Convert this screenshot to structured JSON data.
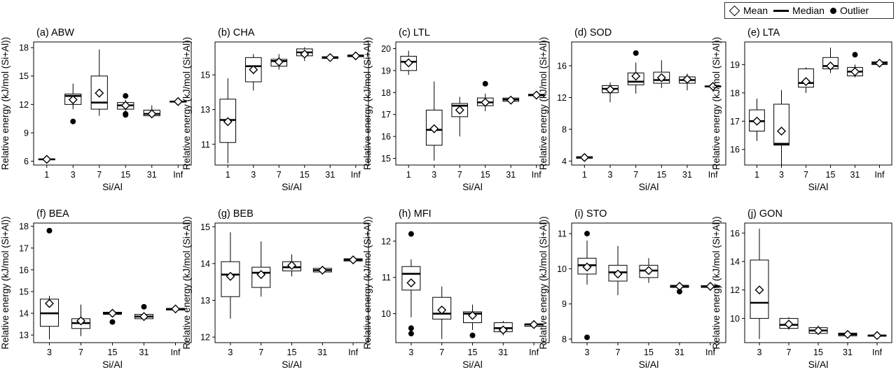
{
  "legend": {
    "mean": "Mean",
    "median": "Median",
    "outlier": "Outlier"
  },
  "chart_data": [
    {
      "type": "box",
      "title": "(a) ABW",
      "xlabel": "Si/Al",
      "ylabel": "Relative energy (kJ/mol (Si+Al))",
      "categories": [
        "1",
        "3",
        "7",
        "15",
        "31",
        "Inf"
      ],
      "yticks": [
        6,
        9,
        12,
        15,
        18
      ],
      "ylim": [
        5.6,
        18.6
      ],
      "boxes": [
        {
          "q1": 6.15,
          "median": 6.2,
          "q3": 6.25,
          "whislo": 6.1,
          "whishi": 6.3,
          "mean": 6.2,
          "outliers": []
        },
        {
          "q1": 12.0,
          "median": 12.9,
          "q3": 13.1,
          "whislo": 11.5,
          "whishi": 14.2,
          "mean": 12.5,
          "outliers": [
            10.2
          ]
        },
        {
          "q1": 11.5,
          "median": 12.2,
          "q3": 15.0,
          "whislo": 10.8,
          "whishi": 17.8,
          "mean": 13.2,
          "outliers": []
        },
        {
          "q1": 11.5,
          "median": 11.9,
          "q3": 12.2,
          "whislo": 11.3,
          "whishi": 12.5,
          "mean": 11.9,
          "outliers": [
            12.9,
            11.0,
            10.9
          ]
        },
        {
          "q1": 10.8,
          "median": 11.0,
          "q3": 11.4,
          "whislo": 10.6,
          "whishi": 11.9,
          "mean": 11.0,
          "outliers": []
        },
        {
          "q1": 12.25,
          "median": 12.3,
          "q3": 12.35,
          "whislo": 12.2,
          "whishi": 12.4,
          "mean": 12.3,
          "outliers": []
        }
      ]
    },
    {
      "type": "box",
      "title": "(b) CHA",
      "xlabel": "Si/Al",
      "ylabel": "Relative energy (kJ/mol (Si+Al))",
      "categories": [
        "1",
        "3",
        "7",
        "15",
        "31",
        "Inf"
      ],
      "yticks": [
        11,
        13,
        15
      ],
      "ylim": [
        9.8,
        16.9
      ],
      "boxes": [
        {
          "q1": 11.1,
          "median": 12.4,
          "q3": 13.6,
          "whislo": 9.9,
          "whishi": 14.8,
          "mean": 12.3,
          "outliers": []
        },
        {
          "q1": 14.6,
          "median": 15.5,
          "q3": 16.0,
          "whislo": 14.1,
          "whishi": 16.2,
          "mean": 15.3,
          "outliers": []
        },
        {
          "q1": 15.5,
          "median": 15.8,
          "q3": 15.9,
          "whislo": 15.3,
          "whishi": 16.2,
          "mean": 15.75,
          "outliers": []
        },
        {
          "q1": 16.1,
          "median": 16.3,
          "q3": 16.5,
          "whislo": 15.8,
          "whishi": 16.6,
          "mean": 16.2,
          "outliers": []
        },
        {
          "q1": 15.95,
          "median": 16.0,
          "q3": 16.05,
          "whislo": 15.85,
          "whishi": 16.1,
          "mean": 16.0,
          "outliers": []
        },
        {
          "q1": 16.05,
          "median": 16.1,
          "q3": 16.15,
          "whislo": 16.0,
          "whishi": 16.2,
          "mean": 16.1,
          "outliers": []
        }
      ]
    },
    {
      "type": "box",
      "title": "(c) LTL",
      "xlabel": "Si/Al",
      "ylabel": "Relative energy (kJ/mol (Si+Al))",
      "categories": [
        "1",
        "3",
        "7",
        "15",
        "31",
        "Inf"
      ],
      "yticks": [
        15,
        16,
        17,
        18,
        19,
        20
      ],
      "ylim": [
        14.7,
        20.3
      ],
      "boxes": [
        {
          "q1": 19.0,
          "median": 19.4,
          "q3": 19.65,
          "whislo": 18.8,
          "whishi": 19.9,
          "mean": 19.35,
          "outliers": []
        },
        {
          "q1": 15.6,
          "median": 16.3,
          "q3": 17.2,
          "whislo": 14.9,
          "whishi": 18.5,
          "mean": 16.35,
          "outliers": []
        },
        {
          "q1": 16.9,
          "median": 17.4,
          "q3": 17.5,
          "whislo": 16.0,
          "whishi": 17.8,
          "mean": 17.2,
          "outliers": []
        },
        {
          "q1": 17.4,
          "median": 17.55,
          "q3": 17.75,
          "whislo": 17.15,
          "whishi": 17.95,
          "mean": 17.55,
          "outliers": [
            18.4
          ]
        },
        {
          "q1": 17.6,
          "median": 17.68,
          "q3": 17.75,
          "whislo": 17.55,
          "whishi": 17.8,
          "mean": 17.65,
          "outliers": []
        },
        {
          "q1": 17.85,
          "median": 17.88,
          "q3": 17.92,
          "whislo": 17.8,
          "whishi": 17.95,
          "mean": 17.88,
          "outliers": []
        }
      ]
    },
    {
      "type": "box",
      "title": "(d) SOD",
      "xlabel": "Si/Al",
      "ylabel": "Relative energy (kJ/mol (Si+Al))",
      "categories": [
        "1",
        "3",
        "7",
        "15",
        "31",
        "Inf"
      ],
      "yticks": [
        4,
        8,
        12,
        16
      ],
      "ylim": [
        3.5,
        19.0
      ],
      "boxes": [
        {
          "q1": 4.35,
          "median": 4.45,
          "q3": 4.55,
          "whislo": 4.25,
          "whishi": 4.65,
          "mean": 4.45,
          "outliers": []
        },
        {
          "q1": 12.6,
          "median": 13.1,
          "q3": 13.5,
          "whislo": 11.4,
          "whishi": 13.9,
          "mean": 13.0,
          "outliers": []
        },
        {
          "q1": 13.6,
          "median": 14.0,
          "q3": 15.1,
          "whislo": 12.5,
          "whishi": 16.4,
          "mean": 14.7,
          "outliers": [
            17.6
          ]
        },
        {
          "q1": 13.8,
          "median": 14.2,
          "q3": 15.2,
          "whislo": 13.2,
          "whishi": 16.7,
          "mean": 14.5,
          "outliers": []
        },
        {
          "q1": 13.8,
          "median": 14.2,
          "q3": 14.6,
          "whislo": 12.9,
          "whishi": 15.0,
          "mean": 14.3,
          "outliers": []
        },
        {
          "q1": 13.35,
          "median": 13.4,
          "q3": 13.45,
          "whislo": 13.3,
          "whishi": 13.5,
          "mean": 13.4,
          "outliers": []
        }
      ]
    },
    {
      "type": "box",
      "title": "(e) LTA",
      "xlabel": "Si/Al",
      "ylabel": "Relative energy (kJ/mol (Si+Al))",
      "categories": [
        "1",
        "3",
        "7",
        "15",
        "31",
        "Inf"
      ],
      "yticks": [
        16,
        17,
        18,
        19
      ],
      "ylim": [
        15.45,
        19.8
      ],
      "boxes": [
        {
          "q1": 16.65,
          "median": 17.0,
          "q3": 17.4,
          "whislo": 16.3,
          "whishi": 17.8,
          "mean": 17.0,
          "outliers": []
        },
        {
          "q1": 16.15,
          "median": 16.2,
          "q3": 17.6,
          "whislo": 15.45,
          "whishi": 18.1,
          "mean": 16.65,
          "outliers": []
        },
        {
          "q1": 18.2,
          "median": 18.35,
          "q3": 18.85,
          "whislo": 18.0,
          "whishi": 18.9,
          "mean": 18.4,
          "outliers": []
        },
        {
          "q1": 18.85,
          "median": 18.95,
          "q3": 19.25,
          "whislo": 18.7,
          "whishi": 19.6,
          "mean": 18.95,
          "outliers": []
        },
        {
          "q1": 18.6,
          "median": 18.75,
          "q3": 18.9,
          "whislo": 18.55,
          "whishi": 19.0,
          "mean": 18.75,
          "outliers": [
            19.35
          ]
        },
        {
          "q1": 19.0,
          "median": 19.05,
          "q3": 19.1,
          "whislo": 18.95,
          "whishi": 19.1,
          "mean": 19.05,
          "outliers": []
        }
      ]
    },
    {
      "type": "box",
      "title": "(f) BEA",
      "xlabel": "Si/Al",
      "ylabel": "Relative energy (kJ/mol (Si+Al))",
      "categories": [
        "3",
        "7",
        "15",
        "31",
        "Inf"
      ],
      "yticks": [
        13,
        14,
        15,
        16,
        17,
        18
      ],
      "ylim": [
        12.65,
        18.15
      ],
      "boxes": [
        {
          "q1": 13.4,
          "median": 14.0,
          "q3": 14.65,
          "whislo": 12.8,
          "whishi": 14.8,
          "mean": 14.45,
          "outliers": [
            17.8
          ]
        },
        {
          "q1": 13.3,
          "median": 13.55,
          "q3": 13.75,
          "whislo": 12.95,
          "whishi": 14.4,
          "mean": 13.65,
          "outliers": []
        },
        {
          "q1": 13.95,
          "median": 14.0,
          "q3": 14.05,
          "whislo": 13.85,
          "whishi": 14.1,
          "mean": 14.0,
          "outliers": [
            13.6
          ]
        },
        {
          "q1": 13.75,
          "median": 13.85,
          "q3": 13.95,
          "whislo": 13.7,
          "whishi": 14.05,
          "mean": 13.85,
          "outliers": [
            14.3
          ]
        },
        {
          "q1": 14.15,
          "median": 14.2,
          "q3": 14.22,
          "whislo": 14.1,
          "whishi": 14.25,
          "mean": 14.2,
          "outliers": []
        }
      ]
    },
    {
      "type": "box",
      "title": "(g) BEB",
      "xlabel": "Si/Al",
      "ylabel": "Relative energy (kJ/mol (Si+Al))",
      "categories": [
        "3",
        "7",
        "15",
        "31",
        "Inf"
      ],
      "yticks": [
        12,
        13,
        14,
        15
      ],
      "ylim": [
        11.85,
        15.1
      ],
      "boxes": [
        {
          "q1": 13.1,
          "median": 13.7,
          "q3": 14.05,
          "whislo": 12.5,
          "whishi": 14.85,
          "mean": 13.65,
          "outliers": []
        },
        {
          "q1": 13.35,
          "median": 13.75,
          "q3": 13.9,
          "whislo": 13.1,
          "whishi": 14.6,
          "mean": 13.7,
          "outliers": []
        },
        {
          "q1": 13.8,
          "median": 13.9,
          "q3": 14.05,
          "whislo": 13.65,
          "whishi": 14.25,
          "mean": 13.95,
          "outliers": []
        },
        {
          "q1": 13.77,
          "median": 13.82,
          "q3": 13.87,
          "whislo": 13.75,
          "whishi": 13.9,
          "mean": 13.82,
          "outliers": []
        },
        {
          "q1": 14.07,
          "median": 14.1,
          "q3": 14.13,
          "whislo": 14.05,
          "whishi": 14.15,
          "mean": 14.1,
          "outliers": []
        }
      ]
    },
    {
      "type": "box",
      "title": "(h) MFI",
      "xlabel": "Si/Al",
      "ylabel": "Relative energy (kJ/mol (Si+Al))",
      "categories": [
        "3",
        "7",
        "15",
        "31",
        "Inf"
      ],
      "yticks": [
        10,
        11,
        12
      ],
      "ylim": [
        9.2,
        12.5
      ],
      "boxes": [
        {
          "q1": 10.65,
          "median": 11.1,
          "q3": 11.3,
          "whislo": 9.9,
          "whishi": 11.5,
          "mean": 10.85,
          "outliers": [
            12.2,
            9.6,
            9.45
          ]
        },
        {
          "q1": 9.85,
          "median": 10.0,
          "q3": 10.45,
          "whislo": 9.3,
          "whishi": 10.75,
          "mean": 10.1,
          "outliers": []
        },
        {
          "q1": 9.75,
          "median": 10.0,
          "q3": 10.05,
          "whislo": 9.55,
          "whishi": 10.25,
          "mean": 9.95,
          "outliers": [
            9.4
          ]
        },
        {
          "q1": 9.5,
          "median": 9.6,
          "q3": 9.75,
          "whislo": 9.4,
          "whishi": 9.8,
          "mean": 9.55,
          "outliers": []
        },
        {
          "q1": 9.65,
          "median": 9.7,
          "q3": 9.72,
          "whislo": 9.63,
          "whishi": 9.75,
          "mean": 9.7,
          "outliers": []
        }
      ]
    },
    {
      "type": "box",
      "title": "(i) STO",
      "xlabel": "Si/Al",
      "ylabel": "Relative energy (kJ/mol (Si+Al))",
      "categories": [
        "3",
        "7",
        "15",
        "31",
        "Inf"
      ],
      "yticks": [
        8,
        9,
        10,
        11
      ],
      "ylim": [
        7.9,
        11.3
      ],
      "boxes": [
        {
          "q1": 9.85,
          "median": 10.1,
          "q3": 10.3,
          "whislo": 9.55,
          "whishi": 10.8,
          "mean": 10.05,
          "outliers": [
            11.0,
            8.05
          ]
        },
        {
          "q1": 9.65,
          "median": 9.9,
          "q3": 10.1,
          "whislo": 9.25,
          "whishi": 10.65,
          "mean": 9.85,
          "outliers": []
        },
        {
          "q1": 9.75,
          "median": 9.95,
          "q3": 10.1,
          "whislo": 9.6,
          "whishi": 10.3,
          "mean": 9.95,
          "outliers": []
        },
        {
          "q1": 9.47,
          "median": 9.5,
          "q3": 9.53,
          "whislo": 9.42,
          "whishi": 9.55,
          "mean": 9.5,
          "outliers": [
            9.35
          ]
        },
        {
          "q1": 9.47,
          "median": 9.5,
          "q3": 9.52,
          "whislo": 9.45,
          "whishi": 9.55,
          "mean": 9.5,
          "outliers": []
        }
      ]
    },
    {
      "type": "box",
      "title": "(j) GON",
      "xlabel": "Si/Al",
      "ylabel": "Relative energy (kJ/mol (Si+Al))",
      "categories": [
        "3",
        "7",
        "15",
        "31",
        "Inf"
      ],
      "yticks": [
        10,
        12,
        14,
        16
      ],
      "ylim": [
        8.3,
        16.7
      ],
      "boxes": [
        {
          "q1": 10.0,
          "median": 11.1,
          "q3": 14.1,
          "whislo": 8.55,
          "whishi": 16.3,
          "mean": 12.0,
          "outliers": []
        },
        {
          "q1": 9.3,
          "median": 9.55,
          "q3": 10.0,
          "whislo": 9.2,
          "whishi": 10.1,
          "mean": 9.6,
          "outliers": []
        },
        {
          "q1": 8.95,
          "median": 9.15,
          "q3": 9.35,
          "whislo": 8.85,
          "whishi": 9.5,
          "mean": 9.15,
          "outliers": []
        },
        {
          "q1": 8.78,
          "median": 8.88,
          "q3": 8.97,
          "whislo": 8.72,
          "whishi": 9.02,
          "mean": 8.88,
          "outliers": []
        },
        {
          "q1": 8.75,
          "median": 8.8,
          "q3": 8.82,
          "whislo": 8.72,
          "whishi": 8.85,
          "mean": 8.8,
          "outliers": []
        }
      ]
    }
  ]
}
